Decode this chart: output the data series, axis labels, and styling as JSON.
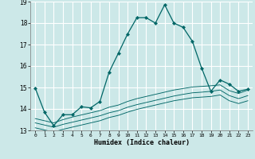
{
  "xlabel": "Humidex (Indice chaleur)",
  "xlim": [
    -0.5,
    23.5
  ],
  "ylim": [
    13,
    19
  ],
  "yticks": [
    13,
    14,
    15,
    16,
    17,
    18,
    19
  ],
  "xticks": [
    0,
    1,
    2,
    3,
    4,
    5,
    6,
    7,
    8,
    9,
    10,
    11,
    12,
    13,
    14,
    15,
    16,
    17,
    18,
    19,
    20,
    21,
    22,
    23
  ],
  "bg_color": "#cce8e8",
  "grid_color": "#ffffff",
  "line_color": "#006666",
  "line1_x": [
    0,
    1,
    2,
    3,
    4,
    5,
    6,
    7,
    8,
    9,
    10,
    11,
    12,
    13,
    14,
    15,
    16,
    17,
    18,
    19,
    20,
    21,
    22,
    23
  ],
  "line1_y": [
    14.97,
    13.85,
    13.22,
    13.73,
    13.73,
    14.1,
    14.05,
    14.35,
    15.72,
    16.6,
    17.5,
    18.25,
    18.25,
    18.0,
    18.85,
    18.0,
    17.8,
    17.15,
    15.9,
    14.82,
    15.35,
    15.15,
    14.82,
    14.92
  ],
  "line2_x": [
    0,
    1,
    2,
    3,
    4,
    5,
    6,
    7,
    8,
    9,
    10,
    11,
    12,
    13,
    14,
    15,
    16,
    17,
    18,
    19,
    20,
    21,
    22,
    23
  ],
  "line2_y": [
    13.55,
    13.45,
    13.35,
    13.5,
    13.62,
    13.72,
    13.82,
    13.92,
    14.08,
    14.18,
    14.35,
    14.48,
    14.58,
    14.68,
    14.78,
    14.88,
    14.95,
    15.02,
    15.05,
    15.08,
    15.12,
    14.85,
    14.72,
    14.88
  ],
  "line3_x": [
    0,
    1,
    2,
    3,
    4,
    5,
    6,
    7,
    8,
    9,
    10,
    11,
    12,
    13,
    14,
    15,
    16,
    17,
    18,
    19,
    20,
    21,
    22,
    23
  ],
  "line3_y": [
    13.35,
    13.25,
    13.15,
    13.28,
    13.38,
    13.48,
    13.58,
    13.68,
    13.82,
    13.92,
    14.08,
    14.2,
    14.3,
    14.4,
    14.5,
    14.6,
    14.68,
    14.75,
    14.78,
    14.82,
    14.88,
    14.62,
    14.48,
    14.62
  ],
  "line4_x": [
    0,
    1,
    2,
    3,
    4,
    5,
    6,
    7,
    8,
    9,
    10,
    11,
    12,
    13,
    14,
    15,
    16,
    17,
    18,
    19,
    20,
    21,
    22,
    23
  ],
  "line4_y": [
    13.12,
    13.02,
    12.92,
    13.05,
    13.15,
    13.25,
    13.35,
    13.45,
    13.6,
    13.7,
    13.85,
    13.98,
    14.08,
    14.18,
    14.28,
    14.38,
    14.45,
    14.52,
    14.55,
    14.58,
    14.65,
    14.38,
    14.25,
    14.38
  ]
}
